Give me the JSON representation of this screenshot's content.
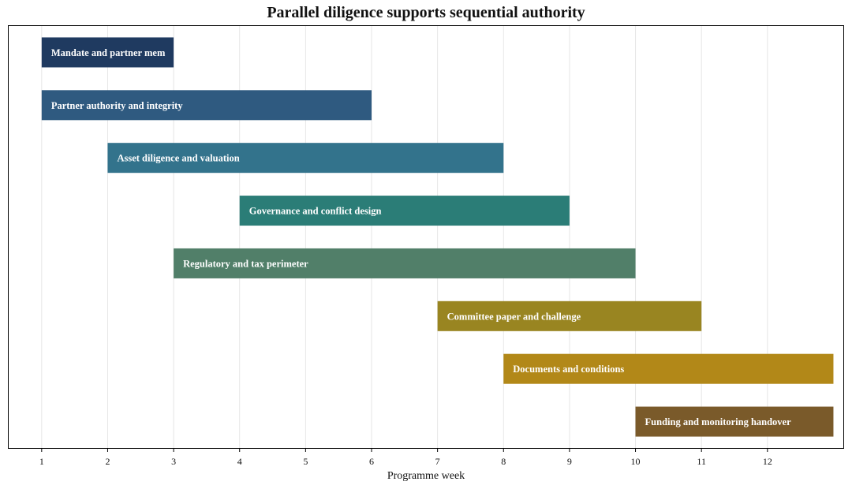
{
  "chart_data": {
    "type": "bar",
    "orientation": "horizontal-gantt",
    "title": "Parallel diligence supports sequential authority",
    "xlabel": "Programme week",
    "ylabel": "",
    "xlim": [
      0.5,
      13.15
    ],
    "xticks": [
      1,
      2,
      3,
      4,
      5,
      6,
      7,
      8,
      9,
      10,
      11,
      12
    ],
    "grid": "vertical",
    "tasks": [
      {
        "label": "Mandate and partner mem",
        "start": 1,
        "end": 3,
        "color": "#1f3a60"
      },
      {
        "label": "Partner authority and integrity",
        "start": 1,
        "end": 6,
        "color": "#2f5a80"
      },
      {
        "label": "Asset diligence and valuation",
        "start": 2,
        "end": 8,
        "color": "#33738c"
      },
      {
        "label": "Governance and conflict design",
        "start": 4,
        "end": 9,
        "color": "#2b7d77"
      },
      {
        "label": "Regulatory and tax perimeter",
        "start": 3,
        "end": 10,
        "color": "#517f69"
      },
      {
        "label": "Committee paper and challenge",
        "start": 7,
        "end": 11,
        "color": "#998521"
      },
      {
        "label": "Documents and conditions",
        "start": 8,
        "end": 13,
        "color": "#b28818"
      },
      {
        "label": "Funding and monitoring handover",
        "start": 10,
        "end": 13,
        "color": "#7a5a2a"
      }
    ]
  }
}
